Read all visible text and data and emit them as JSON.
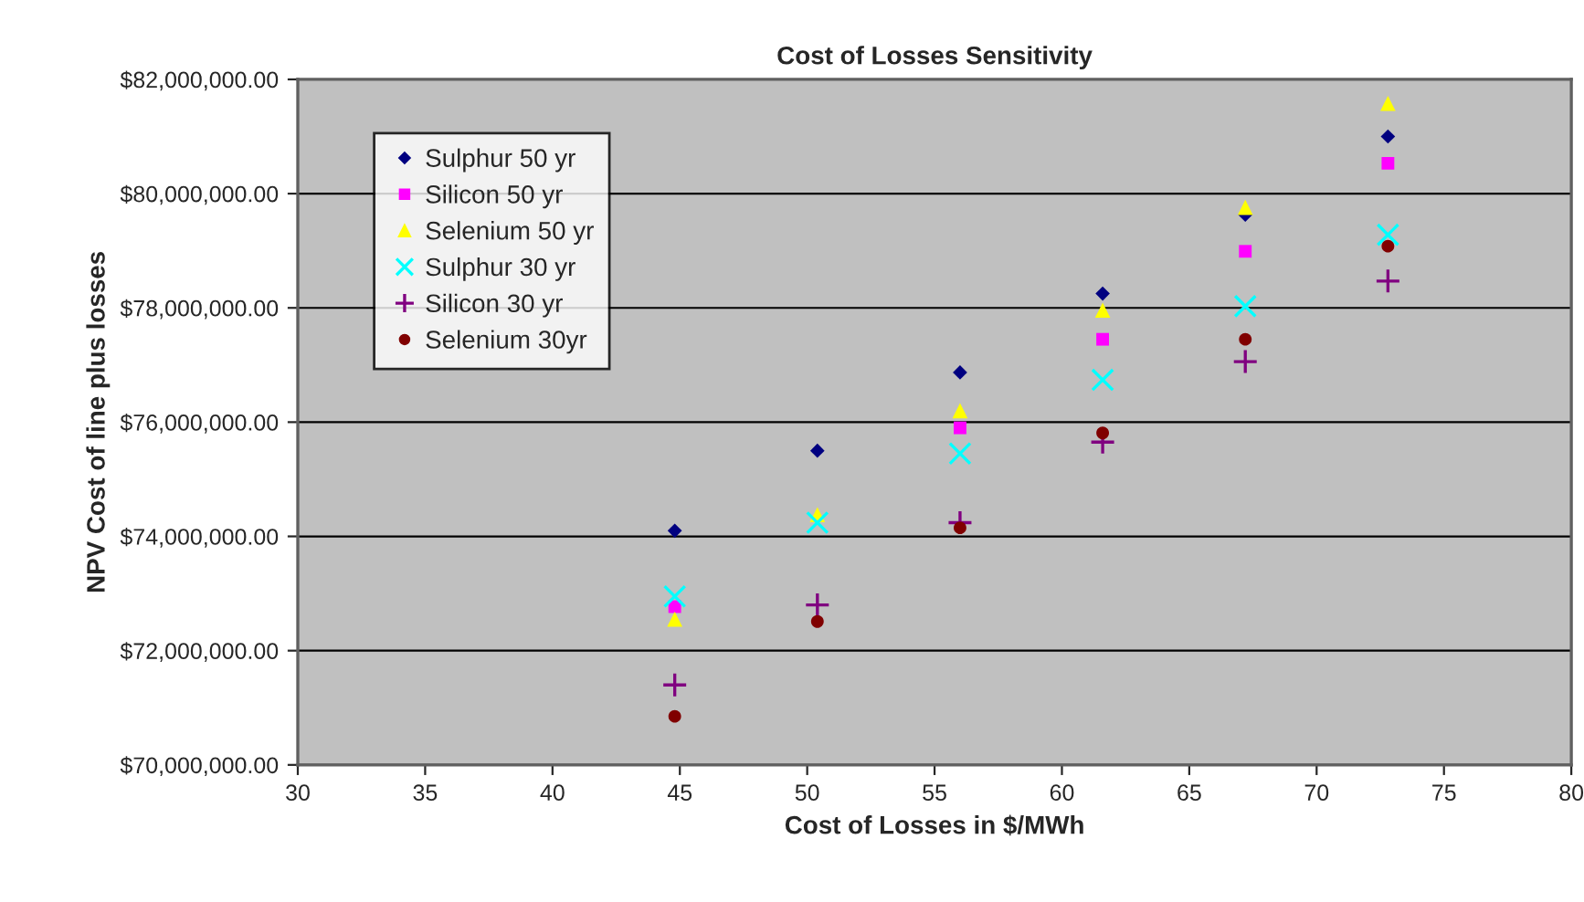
{
  "chart_data": {
    "type": "scatter",
    "title": "Cost of Losses Sensitivity",
    "xlabel": "Cost of Losses in $/MWh",
    "ylabel": "NPV Cost of line plus losses",
    "x": [
      44.8,
      50.4,
      56.0,
      61.6,
      67.2,
      72.8
    ],
    "series": [
      {
        "name": "Sulphur 50 yr",
        "color": "#000080",
        "marker": "diamond",
        "values": [
          74100000,
          75500000,
          76870000,
          78250000,
          79630000,
          81000000
        ]
      },
      {
        "name": "Silicon 50 yr",
        "color": "#ff00ff",
        "marker": "square",
        "values": [
          72770000,
          null,
          75900000,
          77450000,
          78990000,
          80530000
        ]
      },
      {
        "name": "Selenium 50 yr",
        "color": "#ffff00",
        "marker": "triangle",
        "values": [
          72550000,
          74380000,
          76200000,
          77960000,
          79760000,
          81580000
        ]
      },
      {
        "name": "Sulphur 30 yr",
        "color": "#00ffff",
        "marker": "cross",
        "values": [
          72950000,
          74240000,
          75450000,
          76740000,
          78030000,
          79280000
        ]
      },
      {
        "name": "Silicon 30 yr",
        "color": "#800080",
        "marker": "plus",
        "values": [
          71400000,
          72800000,
          74240000,
          75650000,
          77060000,
          78470000
        ]
      },
      {
        "name": "Selenium 30yr",
        "color": "#800000",
        "marker": "circle",
        "values": [
          70850000,
          72510000,
          74150000,
          75810000,
          77450000,
          79080000
        ]
      }
    ],
    "xlim": [
      30,
      80
    ],
    "xticks": [
      30,
      35,
      40,
      45,
      50,
      55,
      60,
      65,
      70,
      75,
      80
    ],
    "ylim": [
      70000000,
      82000000
    ],
    "yticks": [
      {
        "value": 70000000,
        "label": "$70,000,000.00"
      },
      {
        "value": 72000000,
        "label": "$72,000,000.00"
      },
      {
        "value": 74000000,
        "label": "$74,000,000.00"
      },
      {
        "value": 76000000,
        "label": "$76,000,000.00"
      },
      {
        "value": 78000000,
        "label": "$78,000,000.00"
      },
      {
        "value": 80000000,
        "label": "$80,000,000.00"
      },
      {
        "value": 82000000,
        "label": "$82,000,000.00"
      }
    ],
    "grid": "y",
    "legend": "top left"
  }
}
